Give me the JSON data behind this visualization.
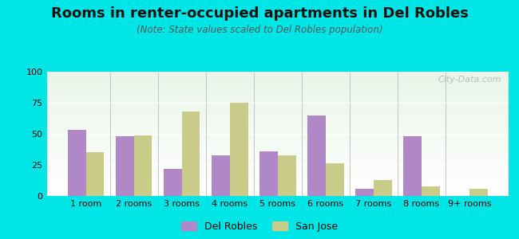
{
  "title": "Rooms in renter-occupied apartments in Del Robles",
  "subtitle": "(Note: State values scaled to Del Robles population)",
  "categories": [
    "1 room",
    "2 rooms",
    "3 rooms",
    "4 rooms",
    "5 rooms",
    "6 rooms",
    "7 rooms",
    "8 rooms",
    "9+ rooms"
  ],
  "del_robles": [
    53,
    48,
    22,
    33,
    36,
    65,
    6,
    48,
    0
  ],
  "san_jose": [
    35,
    49,
    68,
    75,
    33,
    26,
    13,
    8,
    6
  ],
  "del_robles_color": "#b088c8",
  "san_jose_color": "#c8cc88",
  "bg_outer": "#00e5e5",
  "ylim": [
    0,
    100
  ],
  "yticks": [
    0,
    25,
    50,
    75,
    100
  ],
  "bar_width": 0.38,
  "title_fontsize": 13,
  "subtitle_fontsize": 8.5,
  "legend_fontsize": 9,
  "tick_fontsize": 8,
  "watermark": "City-Data.com"
}
